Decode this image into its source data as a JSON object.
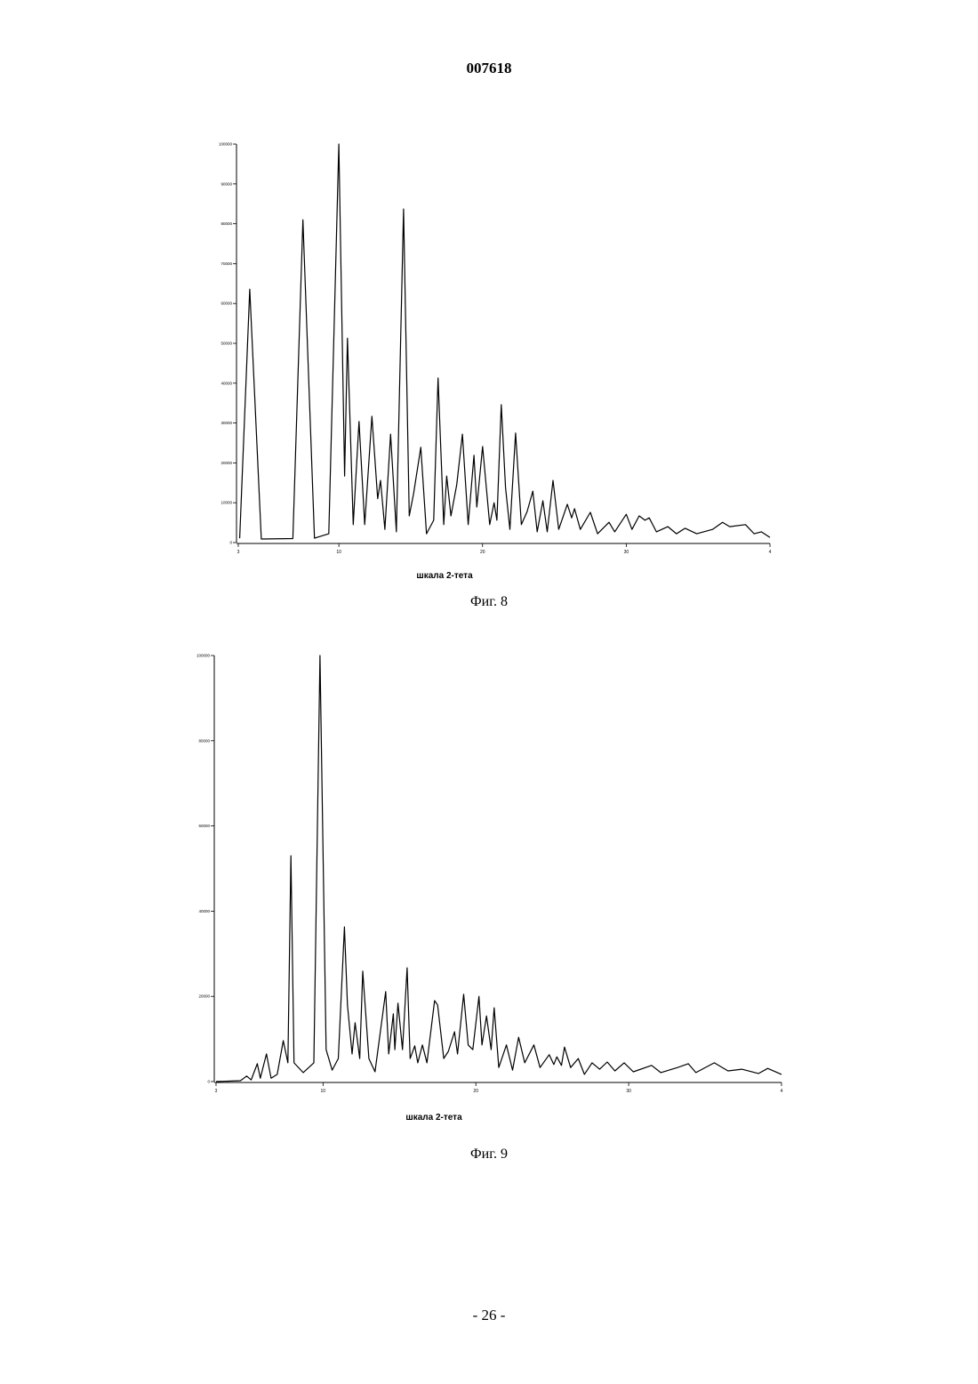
{
  "header": {
    "doc_number": "007618"
  },
  "chart_data": [
    {
      "type": "line",
      "x_label": "шкала 2-тета",
      "caption": "Фиг. 8",
      "color": "#000000",
      "xlim": [
        3,
        40
      ],
      "xticks": [
        3,
        10,
        20,
        30,
        {
          "value": 40,
          "label": "4"
        }
      ],
      "ylim": [
        0,
        100000
      ],
      "yticks": [
        0,
        10000,
        20000,
        30000,
        40000,
        50000,
        60000,
        70000,
        80000,
        90000,
        100000
      ],
      "x": [
        3.1,
        3.8,
        4.6,
        6.8,
        7.5,
        8.3,
        9.3,
        10.0,
        10.4,
        10.6,
        11.0,
        11.4,
        11.8,
        12.3,
        12.7,
        12.9,
        13.2,
        13.6,
        14.0,
        14.5,
        14.9,
        15.2,
        15.7,
        16.1,
        16.6,
        16.9,
        17.3,
        17.5,
        17.8,
        18.2,
        18.6,
        19.0,
        19.4,
        19.6,
        20.0,
        20.5,
        20.8,
        21.0,
        21.3,
        21.6,
        21.9,
        22.3,
        22.7,
        23.1,
        23.5,
        23.8,
        24.2,
        24.5,
        24.9,
        25.3,
        25.9,
        26.2,
        26.4,
        26.8,
        27.5,
        28.0,
        28.8,
        29.2,
        30.0,
        30.4,
        30.9,
        31.3,
        31.6,
        32.1,
        32.9,
        33.5,
        34.1,
        34.9,
        36.0,
        36.7,
        37.2,
        38.3,
        38.9,
        39.4,
        40.0
      ],
      "values": [
        1100,
        63600,
        900,
        1000,
        81000,
        1100,
        2200,
        100000,
        16700,
        51300,
        4500,
        30400,
        4500,
        31700,
        11000,
        15600,
        3300,
        27200,
        2700,
        83700,
        6700,
        12300,
        23900,
        2200,
        5600,
        41300,
        4500,
        16700,
        6700,
        14500,
        27200,
        4500,
        21900,
        8900,
        24100,
        4500,
        10000,
        5600,
        34600,
        13800,
        3300,
        27500,
        4500,
        7800,
        12900,
        2700,
        10500,
        2700,
        15600,
        3300,
        9600,
        6200,
        8500,
        3300,
        7600,
        2200,
        5100,
        2700,
        7100,
        3300,
        6700,
        5600,
        6200,
        2700,
        4000,
        2200,
        3600,
        2200,
        3300,
        5100,
        4000,
        4500,
        2200,
        2700,
        1300
      ]
    },
    {
      "type": "line",
      "x_label": "шкала 2-тета",
      "caption": "Фиг. 9",
      "color": "#000000",
      "xlim": [
        3,
        40
      ],
      "xticks": [
        3,
        10,
        20,
        30,
        {
          "value": 40,
          "label": "4"
        }
      ],
      "ylim": [
        0,
        100000
      ],
      "yticks": [
        0,
        20000,
        40000,
        60000,
        80000,
        100000
      ],
      "x": [
        3.0,
        4.6,
        5.0,
        5.3,
        5.7,
        5.9,
        6.3,
        6.6,
        7.0,
        7.4,
        7.7,
        7.9,
        8.1,
        8.7,
        9.4,
        9.8,
        10.2,
        10.6,
        11.0,
        11.4,
        11.6,
        11.9,
        12.1,
        12.4,
        12.6,
        13.0,
        13.4,
        14.1,
        14.3,
        14.6,
        14.7,
        14.9,
        15.2,
        15.5,
        15.7,
        16.0,
        16.2,
        16.5,
        16.8,
        17.3,
        17.5,
        17.9,
        18.2,
        18.6,
        18.8,
        19.2,
        19.5,
        19.8,
        20.2,
        20.4,
        20.7,
        21.0,
        21.2,
        21.5,
        22.0,
        22.4,
        22.8,
        23.2,
        23.8,
        24.2,
        24.8,
        25.1,
        25.3,
        25.6,
        25.8,
        26.2,
        26.7,
        27.1,
        27.6,
        28.1,
        28.6,
        29.1,
        29.7,
        30.3,
        31.5,
        32.1,
        33.2,
        33.9,
        34.4,
        35.6,
        36.5,
        37.4,
        38.5,
        39.1,
        40.0
      ],
      "values": [
        0,
        200,
        1300,
        400,
        4200,
        800,
        6500,
        800,
        1700,
        9600,
        4400,
        53000,
        4400,
        2100,
        4400,
        100000,
        7500,
        2700,
        5400,
        36300,
        18000,
        6500,
        13800,
        5400,
        25900,
        5400,
        2300,
        21100,
        6500,
        15900,
        7500,
        18400,
        7500,
        26700,
        5400,
        8400,
        4400,
        8600,
        4400,
        19000,
        18000,
        5400,
        7100,
        11700,
        6500,
        20500,
        8600,
        7500,
        20000,
        8600,
        15400,
        7500,
        17300,
        3300,
        8600,
        2700,
        10400,
        4400,
        8600,
        3300,
        6300,
        4000,
        5800,
        3800,
        8100,
        3300,
        5400,
        1700,
        4400,
        2900,
        4600,
        2500,
        4400,
        2300,
        3800,
        2100,
        3300,
        4200,
        2100,
        4400,
        2500,
        2900,
        1900,
        3100,
        1700
      ]
    }
  ],
  "footer": {
    "page_number": "- 26 -"
  }
}
